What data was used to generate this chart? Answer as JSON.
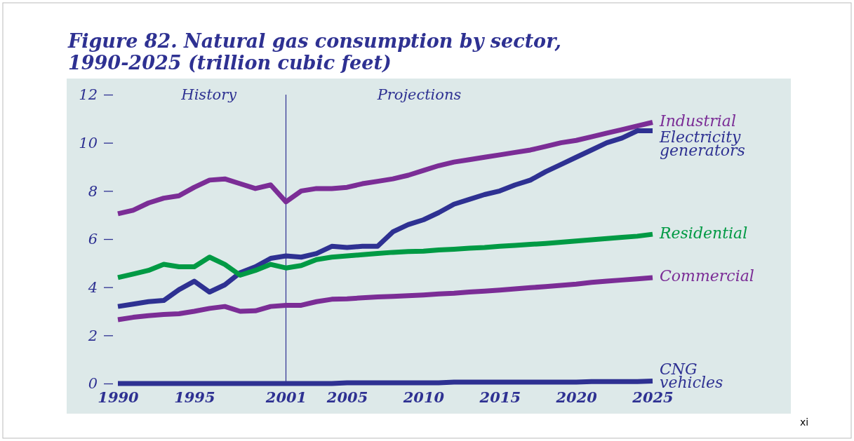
{
  "chart_data": {
    "type": "line",
    "title": "Figure 82. Natural gas consumption by sector, 1990-2025 (trillion cubic feet)",
    "x": [
      1990,
      1991,
      1992,
      1993,
      1994,
      1995,
      1996,
      1997,
      1998,
      1999,
      2000,
      2001,
      2002,
      2003,
      2004,
      2005,
      2006,
      2007,
      2008,
      2009,
      2010,
      2011,
      2012,
      2013,
      2014,
      2015,
      2016,
      2017,
      2018,
      2019,
      2020,
      2021,
      2022,
      2023,
      2024,
      2025
    ],
    "series": [
      {
        "name": "Industrial",
        "color": "#7b2d96",
        "values": [
          7.05,
          7.2,
          7.5,
          7.7,
          7.8,
          8.15,
          8.45,
          8.5,
          8.3,
          8.1,
          8.25,
          7.55,
          8.0,
          8.1,
          8.1,
          8.15,
          8.3,
          8.4,
          8.5,
          8.65,
          8.85,
          9.05,
          9.2,
          9.3,
          9.4,
          9.5,
          9.6,
          9.7,
          9.85,
          10.0,
          10.1,
          10.25,
          10.4,
          10.55,
          10.7,
          10.85
        ]
      },
      {
        "name": "Electricity generators",
        "color": "#2e3192",
        "values": [
          3.2,
          3.3,
          3.4,
          3.45,
          3.9,
          4.25,
          3.8,
          4.1,
          4.6,
          4.85,
          5.2,
          5.3,
          5.25,
          5.4,
          5.7,
          5.65,
          5.7,
          5.7,
          6.3,
          6.6,
          6.8,
          7.1,
          7.45,
          7.65,
          7.85,
          8.0,
          8.25,
          8.45,
          8.8,
          9.1,
          9.4,
          9.7,
          10.0,
          10.2,
          10.5,
          10.5
        ]
      },
      {
        "name": "Residential",
        "color": "#009a44",
        "values": [
          4.4,
          4.55,
          4.7,
          4.95,
          4.85,
          4.85,
          5.25,
          4.95,
          4.5,
          4.7,
          4.95,
          4.8,
          4.9,
          5.15,
          5.25,
          5.3,
          5.35,
          5.4,
          5.45,
          5.48,
          5.5,
          5.55,
          5.58,
          5.62,
          5.65,
          5.7,
          5.74,
          5.78,
          5.82,
          5.87,
          5.92,
          5.97,
          6.02,
          6.07,
          6.12,
          6.2
        ]
      },
      {
        "name": "Commercial",
        "color": "#7b2d96",
        "values": [
          2.65,
          2.75,
          2.82,
          2.87,
          2.9,
          3.0,
          3.12,
          3.2,
          3.0,
          3.02,
          3.2,
          3.25,
          3.25,
          3.4,
          3.5,
          3.52,
          3.56,
          3.6,
          3.62,
          3.65,
          3.68,
          3.72,
          3.75,
          3.8,
          3.84,
          3.88,
          3.93,
          3.98,
          4.03,
          4.08,
          4.13,
          4.2,
          4.25,
          4.3,
          4.35,
          4.4
        ]
      },
      {
        "name": "CNG vehicles",
        "color": "#2e3192",
        "values": [
          0,
          0,
          0,
          0,
          0,
          0,
          0,
          0,
          0,
          0,
          0,
          0,
          0,
          0,
          0,
          0.03,
          0.03,
          0.03,
          0.03,
          0.03,
          0.03,
          0.03,
          0.06,
          0.06,
          0.06,
          0.06,
          0.06,
          0.06,
          0.06,
          0.06,
          0.06,
          0.08,
          0.08,
          0.08,
          0.08,
          0.1
        ]
      }
    ],
    "xlim": [
      1990,
      2025
    ],
    "xticks": [
      1990,
      1995,
      2001,
      2005,
      2010,
      2015,
      2020,
      2025
    ],
    "ylim": [
      0,
      12
    ],
    "yticks": [
      0,
      2,
      4,
      6,
      8,
      10,
      12
    ],
    "ref_lines": [
      {
        "axis": "x",
        "value": 2001,
        "color": "#2e3192"
      }
    ],
    "annotations": [
      "History",
      "Projections",
      "xi"
    ],
    "grid": false,
    "marker": "none",
    "line_style": "solid"
  }
}
